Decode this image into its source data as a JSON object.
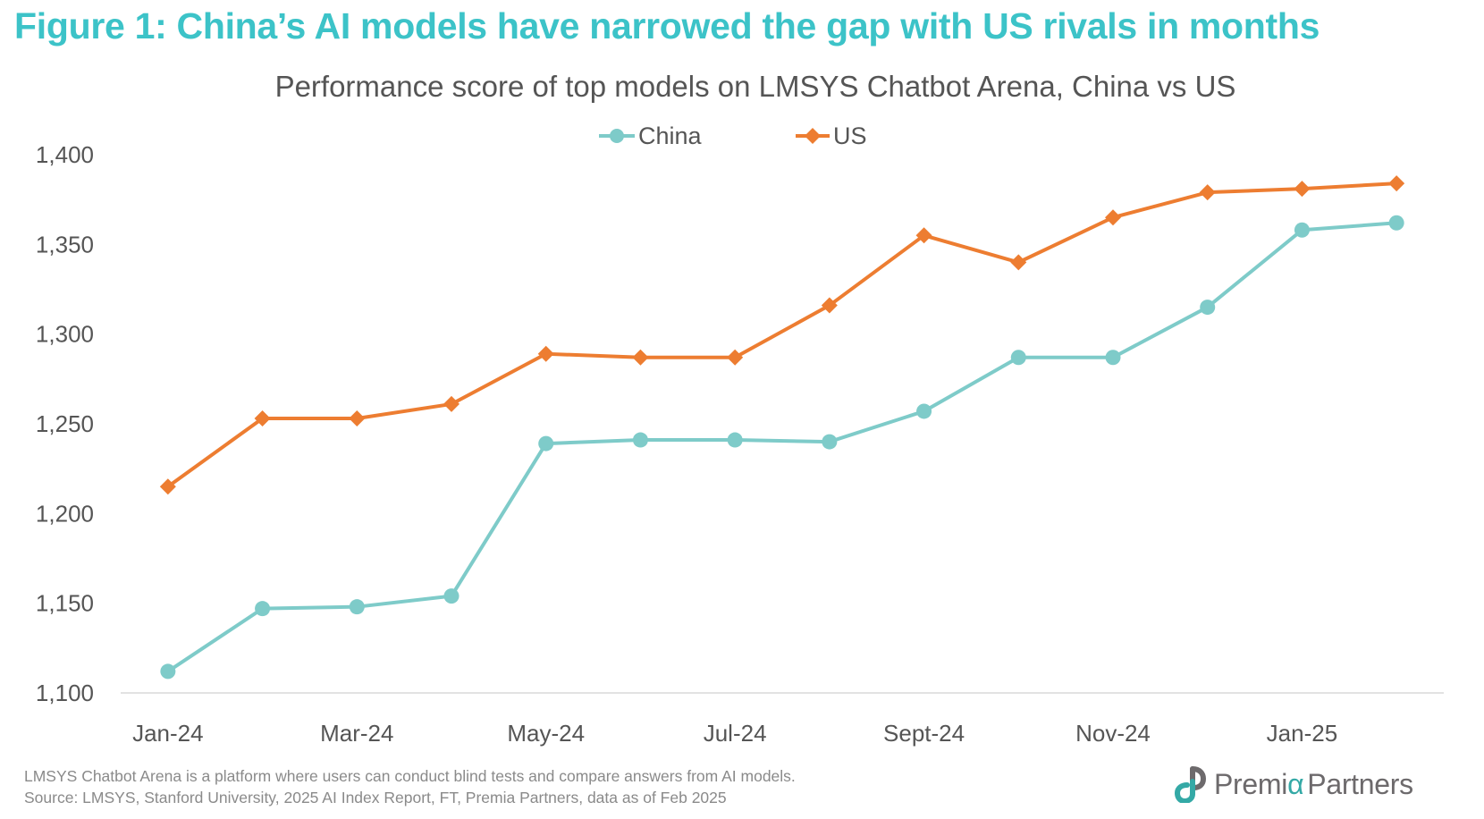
{
  "figure": {
    "title": "Figure 1: China’s AI models have narrowed the gap with US rivals in months"
  },
  "colors": {
    "title": "#3cc3c8",
    "china": "#7ecbc9",
    "us": "#ed7d31",
    "axis_text": "#555555",
    "axis_line": "#d9d9d9"
  },
  "chart_data": {
    "type": "line",
    "title": "Performance score of top models on LMSYS Chatbot Arena, China vs US",
    "xlabel": "",
    "ylabel": "",
    "categories": [
      "Jan-24",
      "Feb-24",
      "Mar-24",
      "Apr-24",
      "May-24",
      "Jun-24",
      "Jul-24",
      "Aug-24",
      "Sept-24",
      "Oct-24",
      "Nov-24",
      "Dec-24",
      "Jan-25",
      "Feb-25"
    ],
    "x_tick_labels": [
      "Jan-24",
      "",
      "Mar-24",
      "",
      "May-24",
      "",
      "Jul-24",
      "",
      "Sept-24",
      "",
      "Nov-24",
      "",
      "Jan-25",
      ""
    ],
    "ylim": [
      1100,
      1400
    ],
    "y_ticks": [
      1100,
      1150,
      1200,
      1250,
      1300,
      1350,
      1400
    ],
    "y_tick_labels": [
      "1,100",
      "1,150",
      "1,200",
      "1,250",
      "1,300",
      "1,350",
      "1,400"
    ],
    "grid": false,
    "legend_position": "top-center",
    "series": [
      {
        "name": "China",
        "marker": "circle",
        "color": "#7ecbc9",
        "values": [
          1112,
          1147,
          1148,
          1154,
          1239,
          1241,
          1241,
          1240,
          1257,
          1287,
          1287,
          1315,
          1358,
          1362
        ]
      },
      {
        "name": "US",
        "marker": "diamond",
        "color": "#ed7d31",
        "values": [
          1215,
          1253,
          1253,
          1261,
          1289,
          1287,
          1287,
          1316,
          1355,
          1340,
          1365,
          1379,
          1381,
          1384
        ]
      }
    ]
  },
  "legend": {
    "items": [
      {
        "label": "China"
      },
      {
        "label": "US"
      }
    ]
  },
  "footnotes": {
    "line1": "LMSYS Chatbot Arena is a platform where users can conduct blind tests and compare answers from AI models.",
    "line2": "Source: LMSYS, Stanford University, 2025 AI Index Report, FT, Premia Partners, data as of Feb 2025"
  },
  "logo": {
    "name_part1": "Premi",
    "name_alpha": "α",
    "name_part2": "Partners"
  }
}
